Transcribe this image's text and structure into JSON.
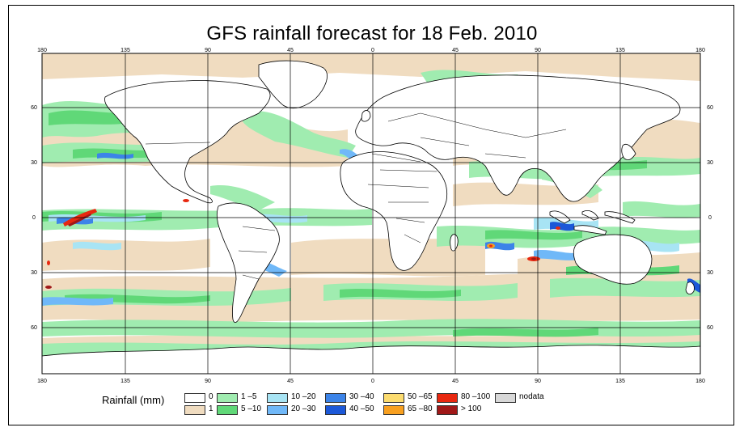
{
  "title": "GFS rainfall forecast for 18 Feb. 2010",
  "longitude_ticks": [
    "180",
    "135",
    "90",
    "45",
    "0",
    "45",
    "90",
    "135",
    "180"
  ],
  "latitude_ticks": [
    "60",
    "30",
    "0",
    "30",
    "60"
  ],
  "colors": {
    "land": "#ffffff",
    "rain_1": "#f0dcc0",
    "rain_1_5": "#a0ecb0",
    "rain_5_10": "#60d878",
    "rain_10_20": "#a8e4f4",
    "rain_20_30": "#70b8f8",
    "rain_30_40": "#3c84e8",
    "rain_40_50": "#1c58d8",
    "rain_50_65": "#fcdc70",
    "rain_65_80": "#f8a020",
    "rain_80_100": "#e82810",
    "rain_gt_100": "#a01818",
    "nodata": "#d8d8d8"
  },
  "legend": {
    "title": "Rainfall (mm)",
    "items": [
      {
        "label": "0",
        "color": "#ffffff"
      },
      {
        "label": "1",
        "color": "#f0dcc0"
      },
      {
        "label": "1 –5",
        "color": "#a0ecb0"
      },
      {
        "label": "5 –10",
        "color": "#60d878"
      },
      {
        "label": "10 –20",
        "color": "#a8e4f4"
      },
      {
        "label": "20 –30",
        "color": "#70b8f8"
      },
      {
        "label": "30 –40",
        "color": "#3c84e8"
      },
      {
        "label": "40 –50",
        "color": "#1c58d8"
      },
      {
        "label": "50 –65",
        "color": "#fcdc70"
      },
      {
        "label": "65 –80",
        "color": "#f8a020"
      },
      {
        "label": "80 –100",
        "color": "#e82810"
      },
      {
        "label": "> 100",
        "color": "#a01818"
      },
      {
        "label": "nodata",
        "color": "#d8d8d8"
      }
    ]
  }
}
